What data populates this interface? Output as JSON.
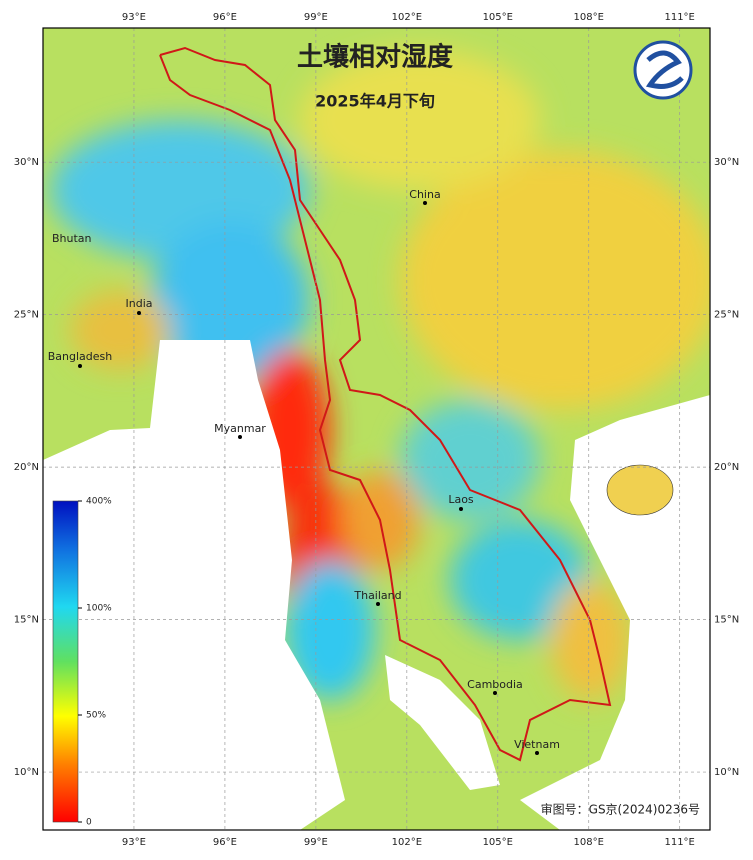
{
  "title": "土壤相对湿度",
  "subtitle": "2025年4月下旬",
  "map": {
    "xlim": [
      90,
      112
    ],
    "ylim": [
      8.1,
      34.4
    ],
    "xticks": [
      {
        "value": 93,
        "label": "93°E"
      },
      {
        "value": 96,
        "label": "96°E"
      },
      {
        "value": 99,
        "label": "99°E"
      },
      {
        "value": 102,
        "label": "102°E"
      },
      {
        "value": 105,
        "label": "105°E"
      },
      {
        "value": 108,
        "label": "108°E"
      },
      {
        "value": 111,
        "label": "111°E"
      }
    ],
    "yticks": [
      {
        "value": 10,
        "label": "10°N"
      },
      {
        "value": 15,
        "label": "15°N"
      },
      {
        "value": 20,
        "label": "20°N"
      },
      {
        "value": 25,
        "label": "25°N"
      },
      {
        "value": 30,
        "label": "30°N"
      }
    ],
    "places": [
      "China",
      "Bhutan",
      "India",
      "Bangladesh",
      "Myanmar",
      "Laos",
      "Thailand",
      "Cambodia",
      "Vietnam"
    ]
  },
  "colorbar": {
    "ticks": [
      0,
      {
        "value": 50,
        "label": "50%"
      },
      {
        "value": 100,
        "label": "100%"
      },
      {
        "value": 400,
        "label": "400%"
      }
    ]
  },
  "approval": "审图号：GS京(2024)0236号"
}
